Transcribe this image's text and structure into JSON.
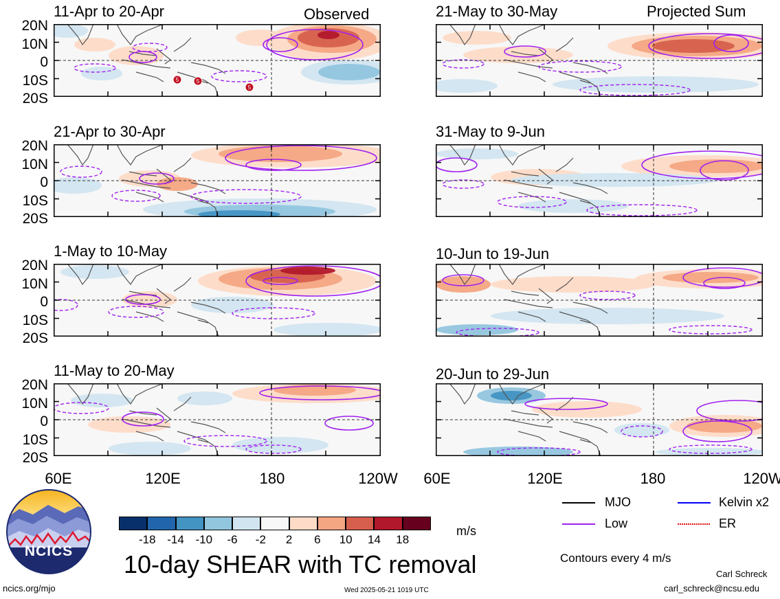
{
  "panels": [
    {
      "title": "11-Apr to 20-Apr",
      "tag": "Observed"
    },
    {
      "title": "21-Apr to 30-Apr",
      "tag": ""
    },
    {
      "title": "1-May to 10-May",
      "tag": ""
    },
    {
      "title": "11-May to 20-May",
      "tag": ""
    },
    {
      "title": "21-May to 30-May",
      "tag": "Projected Sum"
    },
    {
      "title": "31-May to 9-Jun",
      "tag": ""
    },
    {
      "title": "10-Jun to 19-Jun",
      "tag": ""
    },
    {
      "title": "20-Jun to 29-Jun",
      "tag": ""
    }
  ],
  "lat_labels": [
    "20N",
    "10N",
    "0",
    "10S",
    "20S"
  ],
  "lon_labels": [
    "60E",
    "120E",
    "180",
    "120W"
  ],
  "tc_markers": [
    "5",
    "5",
    "5"
  ],
  "colorbar": {
    "colors": [
      "#08306b",
      "#2166ac",
      "#4393c3",
      "#92c5de",
      "#d1e5f0",
      "#f7f7f7",
      "#fddbc7",
      "#f4a582",
      "#d6604d",
      "#b2182b",
      "#67001f"
    ],
    "labels": [
      "-18",
      "-14",
      "-10",
      "-6",
      "-2",
      "2",
      "6",
      "10",
      "14",
      "18"
    ],
    "unit": "m/s"
  },
  "legend": {
    "items": [
      {
        "label": "MJO",
        "color": "#000000"
      },
      {
        "label": "Kelvin x2",
        "color": "#0000ff"
      },
      {
        "label": "Low",
        "color": "#a020f0"
      },
      {
        "label": "ER",
        "color": "#e01010"
      }
    ],
    "note": "Contours every 4 m/s"
  },
  "title": "10-day SHEAR with TC removal",
  "logo_text": "NCICS",
  "footer": {
    "left": "ncics.org/mjo",
    "center": "Wed 2025-05-21 1019 UTC",
    "author": "Carl Schreck",
    "email": "carl_schreck@ncsu.edu"
  }
}
